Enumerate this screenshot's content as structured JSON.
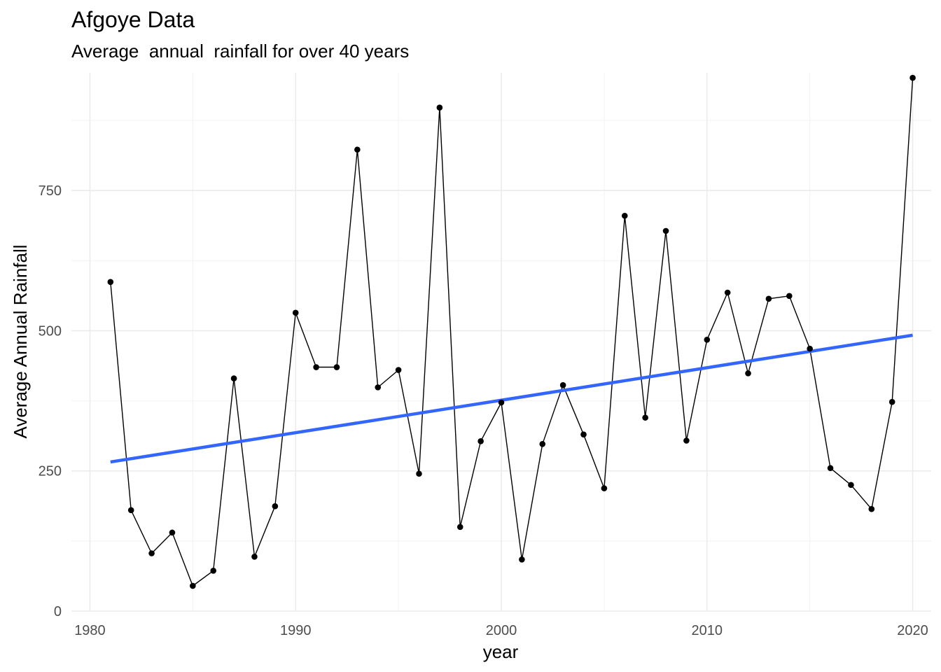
{
  "chart_data": {
    "type": "line",
    "title": "Afgoye Data",
    "subtitle": "Average  annual  rainfall for over 40 years",
    "xlabel": "year",
    "ylabel": "Average Annual Rainfall",
    "xlim": [
      1979.1,
      2020.9
    ],
    "ylim": [
      0,
      960
    ],
    "x_ticks": [
      1980,
      1990,
      2000,
      2010,
      2020
    ],
    "y_ticks": [
      0,
      250,
      500,
      750
    ],
    "grid": "on",
    "legend": "none",
    "series": [
      {
        "x": [
          1981,
          1982,
          1983,
          1984,
          1985,
          1986,
          1987,
          1988,
          1989,
          1990,
          1991,
          1992,
          1993,
          1994,
          1995,
          1996,
          1997,
          1998,
          1999,
          2000,
          2001,
          2002,
          2003,
          2004,
          2005,
          2006,
          2007,
          2008,
          2009,
          2010,
          2011,
          2012,
          2013,
          2014,
          2015,
          2016,
          2017,
          2018,
          2019,
          2020
        ],
        "values": [
          587,
          180,
          103,
          140,
          45,
          72,
          415,
          97,
          187,
          532,
          435,
          435,
          823,
          399,
          430,
          245,
          898,
          150,
          303,
          372,
          92,
          298,
          403,
          315,
          219,
          705,
          345,
          678,
          304,
          484,
          568,
          424,
          557,
          562,
          468,
          255,
          225,
          182,
          373,
          951
        ],
        "color": "#000000"
      }
    ],
    "trend_line": {
      "x": [
        1981,
        2020
      ],
      "values": [
        266,
        492
      ],
      "color": "#3366FF"
    }
  }
}
